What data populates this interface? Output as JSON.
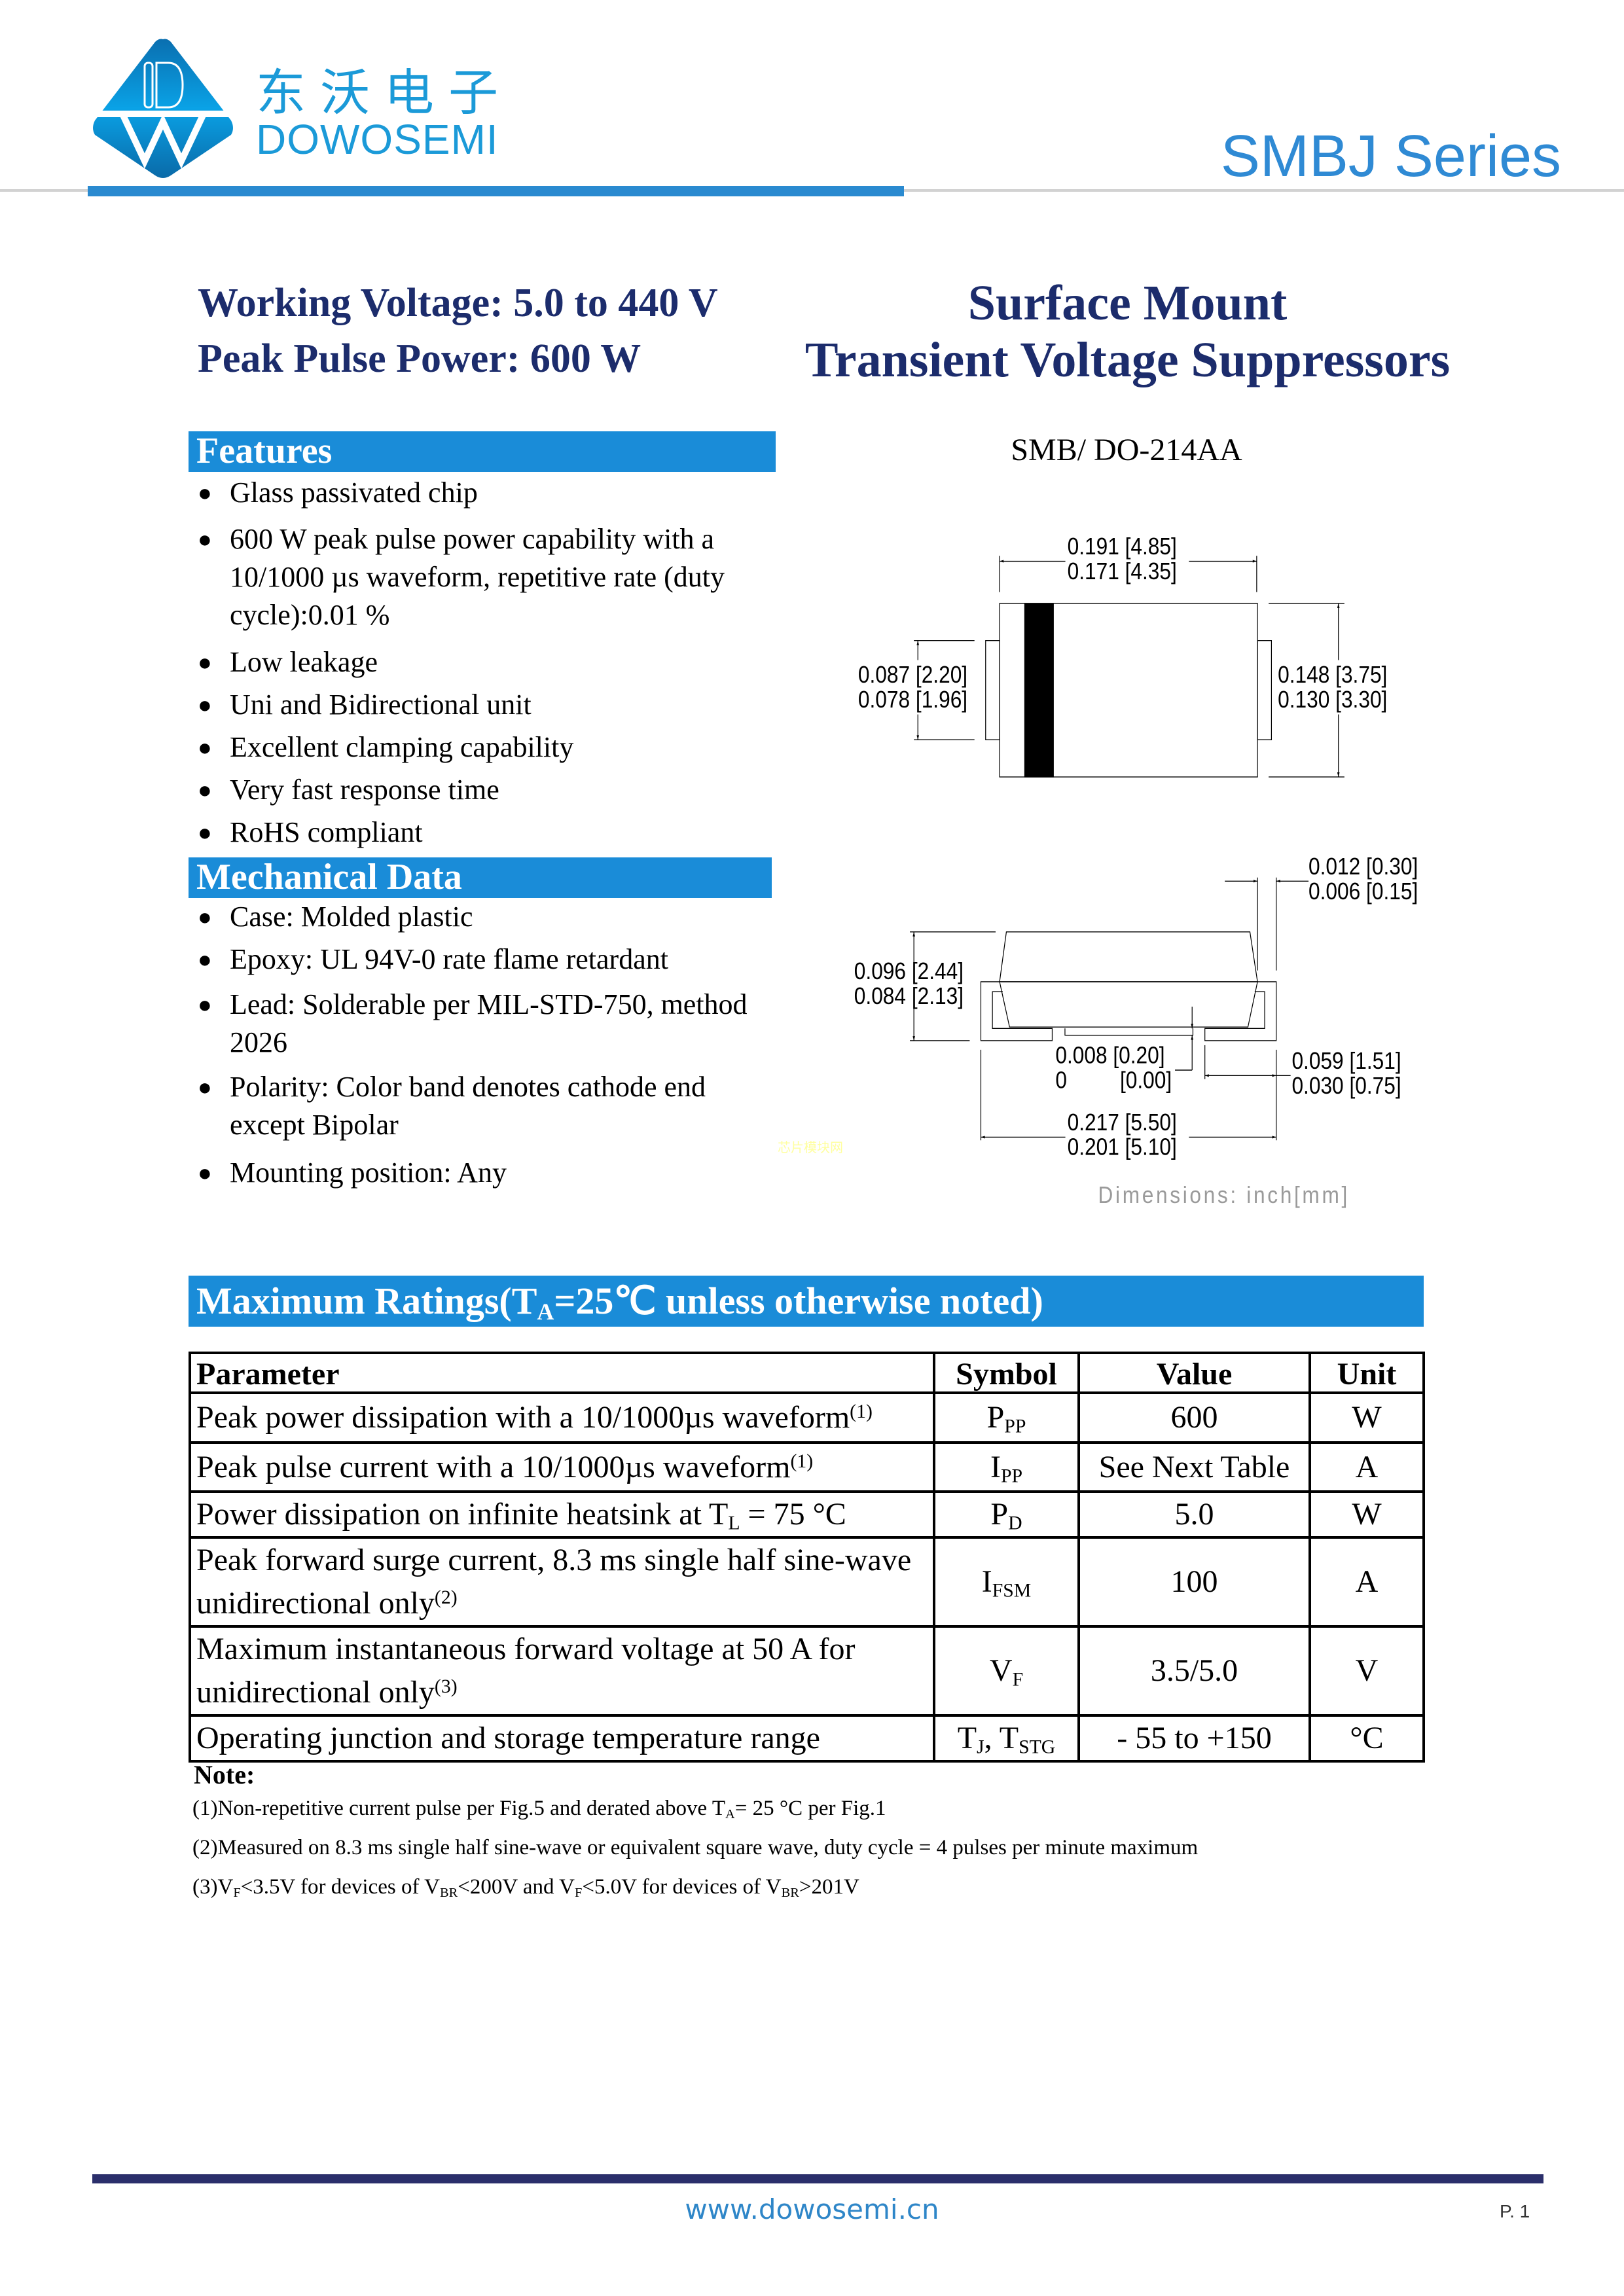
{
  "header": {
    "logo_cn": "东沃电子",
    "logo_en": "DOWOSEMI",
    "series": "SMBJ Series",
    "brand_color": "#2a8ad0"
  },
  "specs": {
    "working_voltage": "Working Voltage: 5.0 to 440 V",
    "peak_power": "Peak Pulse Power: 600 W"
  },
  "title": {
    "line1": "Surface Mount",
    "line2": "Transient Voltage Suppressors"
  },
  "features": {
    "heading": "Features",
    "items": [
      "Glass passivated chip",
      "600 W peak pulse power capability with a 10/1000 µs waveform, repetitive rate (duty cycle):0.01 %",
      "Low leakage",
      "Uni and Bidirectional unit",
      "Excellent clamping capability",
      "Very fast response time",
      "RoHS compliant"
    ]
  },
  "mechanical": {
    "heading": "Mechanical Data",
    "items": [
      "Case: Molded plastic",
      "Epoxy: UL 94V-0 rate flame retardant",
      "Lead: Solderable per MIL-STD-750, method 2026",
      "Polarity: Color band denotes cathode end except Bipolar",
      "Mounting position: Any"
    ]
  },
  "package": {
    "name": "SMB/ DO-214AA",
    "dims": {
      "length_max": "0.191 [4.85]",
      "length_min": "0.171 [4.35]",
      "lead_w_max": "0.087 [2.20]",
      "lead_w_min": "0.078 [1.96]",
      "width_max": "0.148 [3.75]",
      "width_min": "0.130 [3.30]",
      "lead_t_max": "0.012 [0.30]",
      "lead_t_min": "0.006 [0.15]",
      "height_max": "0.096 [2.44]",
      "height_min": "0.084 [2.13]",
      "standoff_max": "0.008 [0.20]",
      "standoff_min_in": "0",
      "standoff_min_mm": "[0.00]",
      "foot_max": "0.059 [1.51]",
      "foot_min": "0.030 [0.75]",
      "overall_max": "0.217 [5.50]",
      "overall_min": "0.201 [5.10]"
    },
    "units_note": "Dimensions: inch[mm]",
    "watermark": "芯片模块网"
  },
  "ratings": {
    "title": [
      {
        "t": "Maximum Ratings(T"
      },
      {
        "t": "A",
        "s": "sub"
      },
      {
        "t": "=25℃ unless otherwise noted)"
      }
    ],
    "headers": [
      "Parameter",
      "Symbol",
      "Value",
      "Unit"
    ],
    "rows": [
      {
        "parameter": [
          {
            "t": "Peak power dissipation with a 10/1000µs waveform"
          },
          {
            "t": "(1)",
            "s": "sup"
          }
        ],
        "symbol": [
          {
            "t": "P"
          },
          {
            "t": "PP",
            "s": "sub"
          }
        ],
        "value": "600",
        "unit": "W"
      },
      {
        "parameter": [
          {
            "t": "Peak pulse current with a 10/1000µs waveform"
          },
          {
            "t": "(1)",
            "s": "sup"
          }
        ],
        "symbol": [
          {
            "t": "I"
          },
          {
            "t": "PP",
            "s": "sub"
          }
        ],
        "value": "See Next Table",
        "unit": "A"
      },
      {
        "parameter": [
          {
            "t": "Power dissipation on infinite heatsink at T"
          },
          {
            "t": "L",
            "s": "sub"
          },
          {
            "t": " = 75 °C"
          }
        ],
        "symbol": [
          {
            "t": "P"
          },
          {
            "t": "D",
            "s": "sub"
          }
        ],
        "value": "5.0",
        "unit": "W"
      },
      {
        "parameter": [
          {
            "t": "Peak forward surge current, 8.3 ms single half sine-wave unidirectional only"
          },
          {
            "t": "(2)",
            "s": "sup"
          }
        ],
        "symbol": [
          {
            "t": "I"
          },
          {
            "t": "FSM",
            "s": "sub"
          }
        ],
        "value": "100",
        "unit": "A"
      },
      {
        "parameter": [
          {
            "t": "Maximum instantaneous forward voltage at 50 A for unidirectional only"
          },
          {
            "t": "(3)",
            "s": "sup"
          }
        ],
        "symbol": [
          {
            "t": "V"
          },
          {
            "t": "F",
            "s": "sub"
          }
        ],
        "value": "3.5/5.0",
        "unit": "V"
      },
      {
        "parameter": [
          {
            "t": "Operating junction and storage temperature range"
          }
        ],
        "symbol": [
          {
            "t": "T"
          },
          {
            "t": "J",
            "s": "sub"
          },
          {
            "t": ", T"
          },
          {
            "t": "STG",
            "s": "sub"
          }
        ],
        "value": "- 55 to +150",
        "unit": "°C"
      }
    ]
  },
  "notes": {
    "heading": "Note:",
    "items": [
      [
        {
          "t": "(1)Non-repetitive current pulse per Fig.5 and derated above T"
        },
        {
          "t": "A",
          "s": "sub"
        },
        {
          "t": "= 25 °C per Fig.1"
        }
      ],
      [
        {
          "t": "(2)Measured on 8.3 ms single half sine-wave or equivalent square wave, duty cycle = 4 pulses per minute maximum"
        }
      ],
      [
        {
          "t": "(3)V"
        },
        {
          "t": "F",
          "s": "sub"
        },
        {
          "t": "<3.5V for devices of V"
        },
        {
          "t": "BR",
          "s": "sub"
        },
        {
          "t": "<200V and V"
        },
        {
          "t": "F",
          "s": "sub"
        },
        {
          "t": "<5.0V for devices of V"
        },
        {
          "t": "BR",
          "s": "sub"
        },
        {
          "t": ">201V"
        }
      ]
    ]
  },
  "footer": {
    "url": "www.dowosemi.cn",
    "page": "P. 1"
  }
}
